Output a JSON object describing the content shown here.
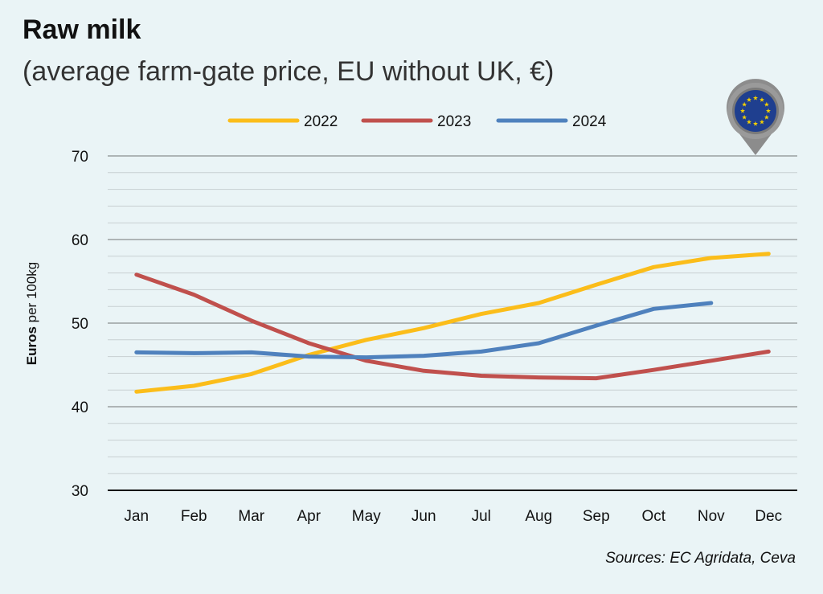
{
  "title": "Raw milk",
  "subtitle": "(average farm-gate price, EU without UK, €)",
  "source": "Sources: EC Agridata, Ceva",
  "colors": {
    "background": "#eaf4f6",
    "s2022": "#fbbd1a",
    "s2023": "#c0504d",
    "s2024": "#4f81bd"
  },
  "chart_data": {
    "type": "line",
    "title": "Raw milk",
    "subtitle": "(average farm-gate price, EU without UK, €)",
    "ylabel_bold": "Euros",
    "ylabel_rest": " per 100kg",
    "xlabel": "",
    "categories": [
      "Jan",
      "Feb",
      "Mar",
      "Apr",
      "May",
      "Jun",
      "Jul",
      "Aug",
      "Sep",
      "Oct",
      "Nov",
      "Dec"
    ],
    "ylim": [
      30,
      70
    ],
    "yticks": [
      30,
      40,
      50,
      60,
      70
    ],
    "grid": true,
    "legend": "top",
    "series": [
      {
        "name": "2022",
        "color": "#fbbd1a",
        "values": [
          41.8,
          42.5,
          43.9,
          46.2,
          48.0,
          49.4,
          51.1,
          52.4,
          54.6,
          56.7,
          57.8,
          58.3
        ]
      },
      {
        "name": "2023",
        "color": "#c0504d",
        "values": [
          55.8,
          53.4,
          50.3,
          47.6,
          45.5,
          44.3,
          43.7,
          43.5,
          43.4,
          44.4,
          45.5,
          46.6
        ]
      },
      {
        "name": "2024",
        "color": "#4f81bd",
        "values": [
          46.5,
          46.4,
          46.5,
          46.0,
          45.9,
          46.1,
          46.6,
          47.6,
          49.7,
          51.7,
          52.4,
          null
        ]
      }
    ]
  }
}
